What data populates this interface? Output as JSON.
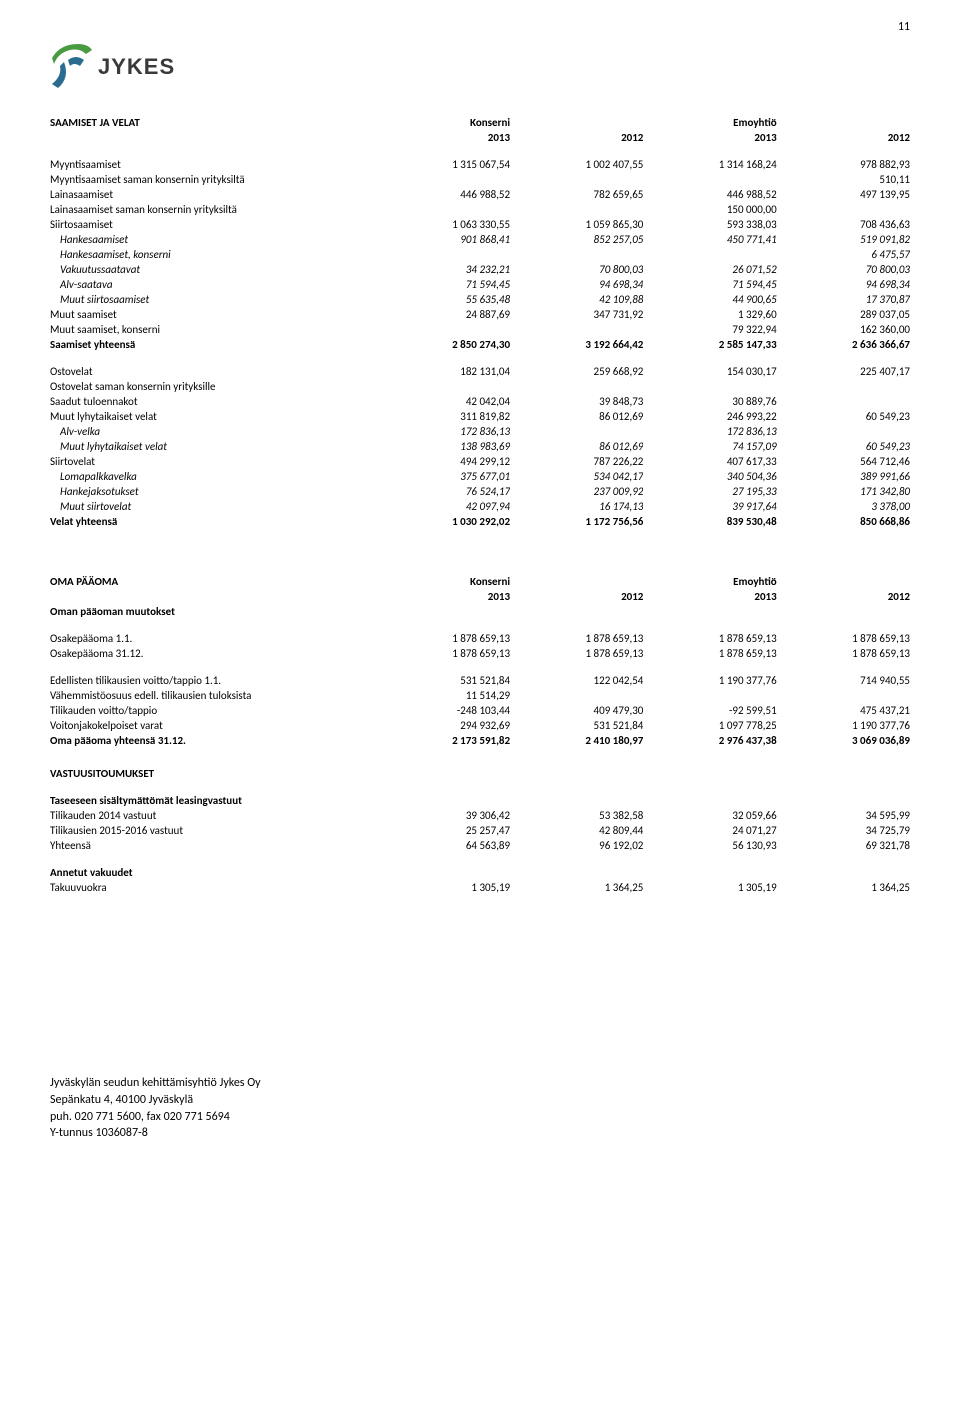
{
  "page_number": "11",
  "logo": {
    "brand": "JYKES",
    "mark_color_top": "#4a9b3f",
    "mark_color_bottom": "#2a6b8f"
  },
  "section1": {
    "title": "SAAMISET JA VELAT",
    "group_a": "Konserni",
    "group_b": "Emoyhtiö",
    "years": [
      "2013",
      "2012",
      "2013",
      "2012"
    ],
    "rows": [
      {
        "label": "Myyntisaamiset",
        "v": [
          "1 315 067,54",
          "1 002 407,55",
          "1 314 168,24",
          "978 882,93"
        ]
      },
      {
        "label": "Myyntisaamiset saman konsernin yrityksiltä",
        "v": [
          "",
          "",
          "",
          "510,11"
        ]
      },
      {
        "label": "Lainasaamiset",
        "v": [
          "446 988,52",
          "782 659,65",
          "446 988,52",
          "497 139,95"
        ]
      },
      {
        "label": "Lainasaamiset saman konsernin yrityksiltä",
        "v": [
          "",
          "",
          "150 000,00",
          ""
        ]
      },
      {
        "label": "Siirtosaamiset",
        "v": [
          "1 063 330,55",
          "1 059 865,30",
          "593 338,03",
          "708 436,63"
        ]
      },
      {
        "label": "Hankesaamiset",
        "italic": true,
        "indent": true,
        "v": [
          "901 868,41",
          "852 257,05",
          "450 771,41",
          "519 091,82"
        ]
      },
      {
        "label": "Hankesaamiset, konserni",
        "italic": true,
        "indent": true,
        "v": [
          "",
          "",
          "",
          "6 475,57"
        ]
      },
      {
        "label": "Vakuutussaatavat",
        "italic": true,
        "indent": true,
        "v": [
          "34 232,21",
          "70 800,03",
          "26 071,52",
          "70 800,03"
        ]
      },
      {
        "label": "Alv-saatava",
        "italic": true,
        "indent": true,
        "v": [
          "71 594,45",
          "94 698,34",
          "71 594,45",
          "94 698,34"
        ]
      },
      {
        "label": "Muut siirtosaamiset",
        "italic": true,
        "indent": true,
        "v": [
          "55 635,48",
          "42 109,88",
          "44 900,65",
          "17 370,87"
        ]
      },
      {
        "label": "Muut saamiset",
        "v": [
          "24 887,69",
          "347 731,92",
          "1 329,60",
          "289 037,05"
        ]
      },
      {
        "label": "Muut saamiset, konserni",
        "v": [
          "",
          "",
          "79 322,94",
          "162 360,00"
        ]
      },
      {
        "label": "Saamiset yhteensä",
        "bold": true,
        "v": [
          "2 850 274,30",
          "3 192 664,42",
          "2 585 147,33",
          "2 636 366,67"
        ]
      }
    ],
    "rows2": [
      {
        "label": "Ostovelat",
        "v": [
          "182 131,04",
          "259 668,92",
          "154 030,17",
          "225 407,17"
        ]
      },
      {
        "label": "Ostovelat saman konsernin yrityksille",
        "v": [
          "",
          "",
          "",
          ""
        ]
      },
      {
        "label": "Saadut tuloennakot",
        "v": [
          "42 042,04",
          "39 848,73",
          "30 889,76",
          ""
        ]
      },
      {
        "label": "Muut lyhytaikaiset velat",
        "v": [
          "311 819,82",
          "86 012,69",
          "246 993,22",
          "60 549,23"
        ]
      },
      {
        "label": "Alv-velka",
        "italic": true,
        "indent": true,
        "v": [
          "172 836,13",
          "",
          "172 836,13",
          ""
        ]
      },
      {
        "label": "Muut lyhytaikaiset velat",
        "italic": true,
        "indent": true,
        "v": [
          "138 983,69",
          "86 012,69",
          "74 157,09",
          "60 549,23"
        ]
      },
      {
        "label": "Siirtovelat",
        "v": [
          "494 299,12",
          "787 226,22",
          "407 617,33",
          "564 712,46"
        ]
      },
      {
        "label": "Lomapalkkavelka",
        "italic": true,
        "indent": true,
        "v": [
          "375 677,01",
          "534 042,17",
          "340 504,36",
          "389 991,66"
        ]
      },
      {
        "label": "Hankejaksotukset",
        "italic": true,
        "indent": true,
        "v": [
          "76 524,17",
          "237 009,92",
          "27 195,33",
          "171 342,80"
        ]
      },
      {
        "label": "Muut siirtovelat",
        "italic": true,
        "indent": true,
        "v": [
          "42 097,94",
          "16 174,13",
          "39 917,64",
          "3 378,00"
        ]
      },
      {
        "label": "Velat yhteensä",
        "bold": true,
        "v": [
          "1 030 292,02",
          "1 172 756,56",
          "839 530,48",
          "850 668,86"
        ]
      }
    ]
  },
  "section2": {
    "title": "OMA PÄÄOMA",
    "subtitle": "Oman pääoman muutokset",
    "group_a": "Konserni",
    "group_b": "Emoyhtiö",
    "years": [
      "2013",
      "2012",
      "2013",
      "2012"
    ],
    "rows": [
      {
        "label": "Osakepääoma 1.1.",
        "v": [
          "1 878 659,13",
          "1 878 659,13",
          "1 878 659,13",
          "1 878 659,13"
        ]
      },
      {
        "label": "Osakepääoma  31.12.",
        "v": [
          "1 878 659,13",
          "1 878 659,13",
          "1 878 659,13",
          "1 878 659,13"
        ]
      }
    ],
    "rows2": [
      {
        "label": "Edellisten tilikausien voitto/tappio 1.1.",
        "v": [
          "531 521,84",
          "122 042,54",
          "1 190 377,76",
          "714 940,55"
        ]
      },
      {
        "label": "Vähemmistöosuus edell. tilikausien tuloksista",
        "v": [
          "11 514,29",
          "",
          "",
          ""
        ]
      },
      {
        "label": "Tilikauden voitto/tappio",
        "v": [
          "-248 103,44",
          "409 479,30",
          "-92 599,51",
          "475 437,21"
        ]
      },
      {
        "label": "Voitonjakokelpoiset varat",
        "v": [
          "294 932,69",
          "531 521,84",
          "1 097 778,25",
          "1 190 377,76"
        ]
      },
      {
        "label": "Oma pääoma yhteensä 31.12.",
        "bold": true,
        "v": [
          "2 173 591,82",
          "2 410 180,97",
          "2 976 437,38",
          "3 069 036,89"
        ]
      }
    ]
  },
  "section3": {
    "title": "VASTUUSITOUMUKSET",
    "subhead1": "Taseeseen sisältymättömät leasingvastuut",
    "rows": [
      {
        "label": "Tilikauden 2014 vastuut",
        "v": [
          "39 306,42",
          "53 382,58",
          "32 059,66",
          "34 595,99"
        ]
      },
      {
        "label": "Tilikausien  2015-2016 vastuut",
        "v": [
          "25 257,47",
          "42 809,44",
          "24 071,27",
          "34 725,79"
        ]
      },
      {
        "label": "Yhteensä",
        "v": [
          "64 563,89",
          "96 192,02",
          "56 130,93",
          "69 321,78"
        ]
      }
    ],
    "subhead2": "Annetut vakuudet",
    "rows2": [
      {
        "label": "Takuuvuokra",
        "v": [
          "1 305,19",
          "1 364,25",
          "1 305,19",
          "1 364,25"
        ]
      }
    ]
  },
  "footer": {
    "line1": "Jyväskylän seudun kehittämisyhtiö Jykes Oy",
    "line2": "Sepänkatu 4, 40100 Jyväskylä",
    "line3": "puh. 020 771 5600, fax 020 771 5694",
    "line4": "Y-tunnus 1036087-8"
  }
}
